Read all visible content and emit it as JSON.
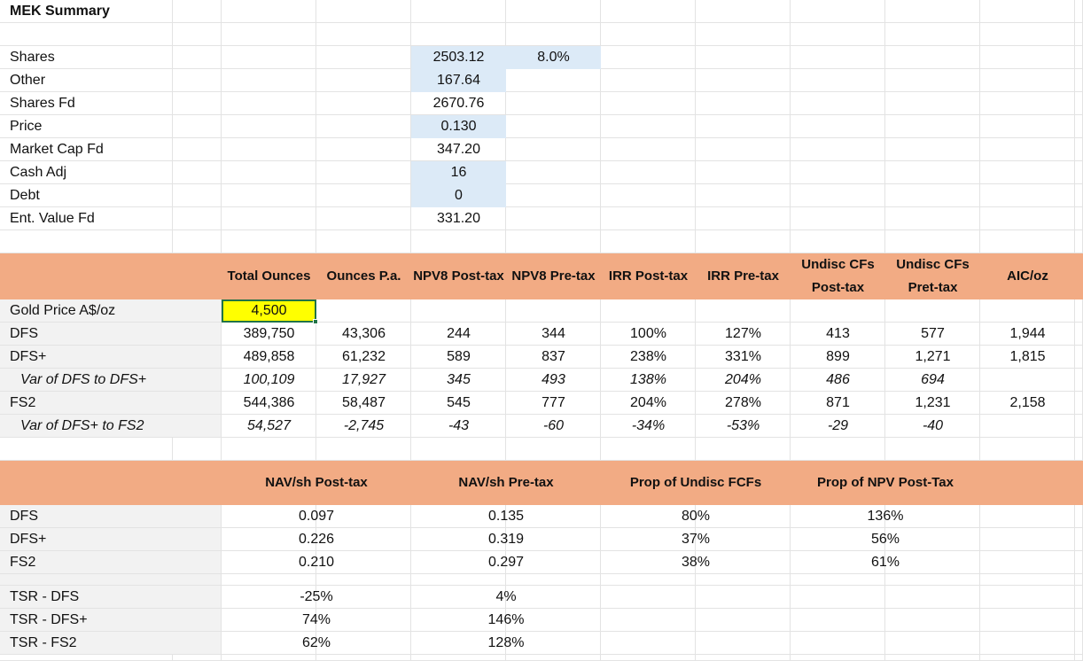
{
  "title": "MEK Summary",
  "summary": {
    "rows": [
      {
        "label": "Shares",
        "value": "2503.12",
        "extra": "8.0%"
      },
      {
        "label": "Other",
        "value": "167.64"
      },
      {
        "label": "Shares Fd",
        "value": "2670.76"
      },
      {
        "label": "Price",
        "value": "0.130"
      },
      {
        "label": "Market Cap Fd",
        "value": "347.20"
      },
      {
        "label": "Cash Adj",
        "value": "16"
      },
      {
        "label": "Debt",
        "value": "0"
      },
      {
        "label": "Ent. Value Fd",
        "value": "331.20"
      }
    ]
  },
  "table1": {
    "headers": [
      "Total Ounces",
      "Ounces P.a.",
      "NPV8 Post-tax",
      "NPV8 Pre-tax",
      "IRR Post-tax",
      "IRR Pre-tax",
      "Undisc CFs Post-tax",
      "Undisc CFs Pret-tax",
      "AIC/oz"
    ],
    "rows": [
      {
        "label": "Gold Price A$/oz",
        "cells": [
          "4,500"
        ]
      },
      {
        "label": "DFS",
        "cells": [
          "389,750",
          "43,306",
          "244",
          "344",
          "100%",
          "127%",
          "413",
          "577",
          "1,944"
        ]
      },
      {
        "label": "DFS+",
        "cells": [
          "489,858",
          "61,232",
          "589",
          "837",
          "238%",
          "331%",
          "899",
          "1,271",
          "1,815"
        ]
      },
      {
        "label": "Var of DFS to DFS+",
        "cells": [
          "100,109",
          "17,927",
          "345",
          "493",
          "138%",
          "204%",
          "486",
          "694"
        ]
      },
      {
        "label": "FS2",
        "cells": [
          "544,386",
          "58,487",
          "545",
          "777",
          "204%",
          "278%",
          "871",
          "1,231",
          "2,158"
        ]
      },
      {
        "label": "Var of DFS+ to FS2",
        "cells": [
          "54,527",
          "-2,745",
          "-43",
          "-60",
          "-34%",
          "-53%",
          "-29",
          "-40"
        ]
      }
    ]
  },
  "table2": {
    "headers": [
      "NAV/sh Post-tax",
      "NAV/sh Pre-tax",
      "Prop of Undisc FCFs",
      "Prop of NPV Post-Tax"
    ],
    "rows": [
      {
        "label": "DFS",
        "cells": [
          "0.097",
          "0.135",
          "80%",
          "136%"
        ]
      },
      {
        "label": "DFS+",
        "cells": [
          "0.226",
          "0.319",
          "37%",
          "56%"
        ]
      },
      {
        "label": "FS2",
        "cells": [
          "0.210",
          "0.297",
          "38%",
          "61%"
        ]
      }
    ],
    "tsr_rows": [
      {
        "label": "TSR - DFS",
        "cells": [
          "-25%",
          "4%"
        ]
      },
      {
        "label": "TSR - DFS+",
        "cells": [
          "74%",
          "146%"
        ]
      },
      {
        "label": "TSR - FS2",
        "cells": [
          "62%",
          "128%"
        ]
      }
    ]
  }
}
